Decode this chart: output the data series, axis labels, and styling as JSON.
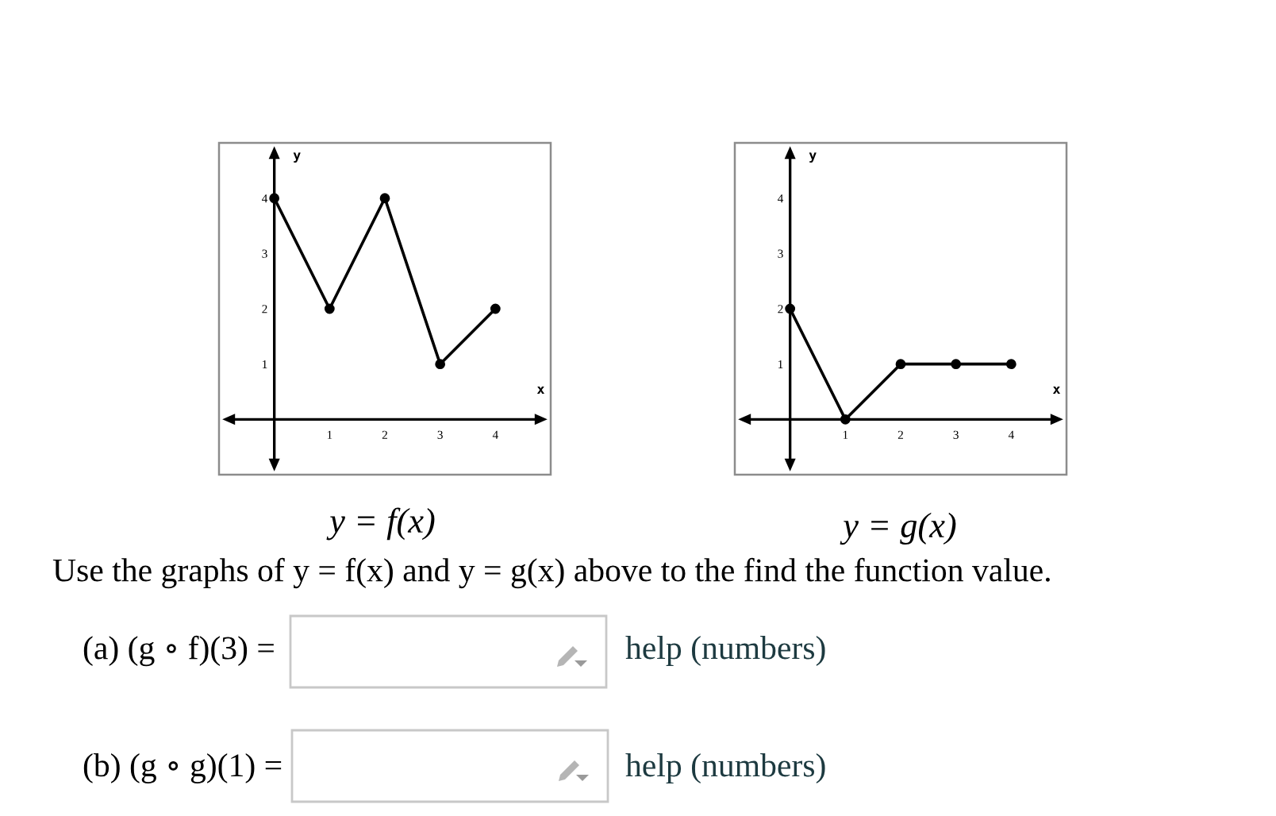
{
  "chart_data": [
    {
      "type": "line",
      "x": [
        0,
        1,
        2,
        3,
        4
      ],
      "values": [
        4,
        2,
        4,
        1,
        2
      ],
      "color": "#000000",
      "marker": "circle",
      "line_style": "solid",
      "xlim": [
        -1,
        5
      ],
      "ylim": [
        -1,
        5
      ],
      "xticks": [
        1,
        2,
        3,
        4
      ],
      "yticks": [
        1,
        2,
        3,
        4
      ],
      "xlabel": "x",
      "ylabel": "y",
      "grid": false,
      "legend": false,
      "annotations": [
        "y = f(x)",
        "Use the graphs of y = f(x) and y = g(x) above to the find the function value.",
        "(a) (g ∘ f)(3) =",
        "help (numbers)",
        "(b) (g ∘ g)(1) =",
        "help (numbers)"
      ]
    },
    {
      "type": "line",
      "x": [
        0,
        1,
        2,
        3,
        4
      ],
      "values": [
        2,
        0,
        1,
        1,
        1
      ],
      "color": "#000000",
      "marker": "circle",
      "line_style": "solid",
      "xlim": [
        -1,
        5
      ],
      "ylim": [
        -1,
        5
      ],
      "xticks": [
        1,
        2,
        3,
        4
      ],
      "yticks": [
        1,
        2,
        3,
        4
      ],
      "xlabel": "x",
      "ylabel": "y",
      "grid": false,
      "legend": false,
      "annotations": [
        "y = g(x)"
      ]
    }
  ]
}
